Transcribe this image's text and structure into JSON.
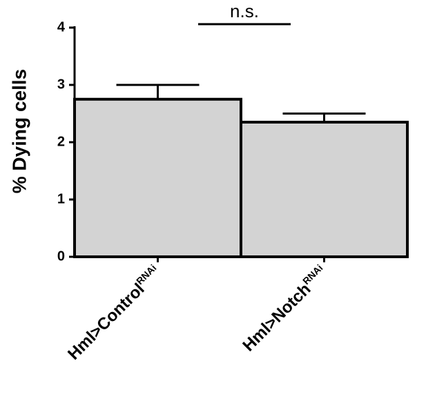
{
  "chart_data": {
    "type": "bar",
    "ylabel": "% Dying cells",
    "categories": [
      "Hml>Control",
      "Hml>Notch"
    ],
    "category_superscripts": [
      "RNAi",
      "RNAi"
    ],
    "values": [
      2.75,
      2.35
    ],
    "errors": [
      0.25,
      0.15
    ],
    "color": "#d3d3d3",
    "ylim": [
      0,
      4
    ],
    "yticks": [
      0,
      1,
      2,
      3,
      4
    ],
    "annotation": "n.s."
  }
}
